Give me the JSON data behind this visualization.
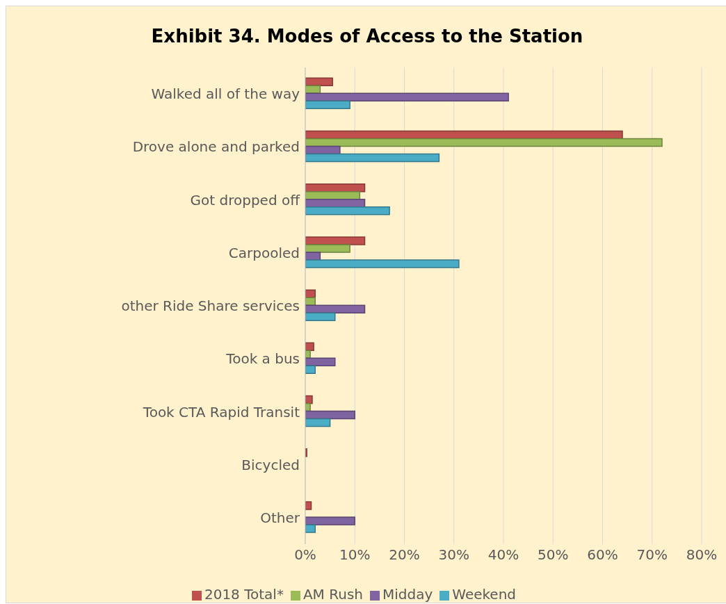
{
  "chart_data": {
    "type": "bar",
    "orientation": "horizontal",
    "title": "Exhibit 34. Modes of Access to the Station",
    "categories": [
      "Walked all of the way",
      "Drove alone and parked",
      "Got dropped off",
      "Carpooled",
      "other Ride Share services",
      "Took a bus",
      "Took CTA Rapid Transit",
      "Bicycled",
      "Other"
    ],
    "series": [
      {
        "name": "2018 Total*",
        "color": "#c0504d",
        "values": [
          5.5,
          64,
          12,
          12,
          2,
          1.7,
          1.4,
          0.3,
          1.2
        ]
      },
      {
        "name": "AM Rush",
        "color": "#9bbb59",
        "values": [
          3,
          72,
          11,
          9,
          2,
          1,
          1,
          0,
          0
        ]
      },
      {
        "name": "Midday",
        "color": "#8064a2",
        "values": [
          41,
          7,
          12,
          3,
          12,
          6,
          10,
          0,
          10
        ]
      },
      {
        "name": "Weekend",
        "color": "#4bacc6",
        "values": [
          9,
          27,
          17,
          31,
          6,
          2,
          5,
          0,
          2
        ]
      }
    ],
    "xlim": [
      0,
      80
    ],
    "xticks": [
      {
        "value": 0,
        "label": "0%"
      },
      {
        "value": 10,
        "label": "10%"
      },
      {
        "value": 20,
        "label": "20%"
      },
      {
        "value": 30,
        "label": "30%"
      },
      {
        "value": 40,
        "label": "40%"
      },
      {
        "value": 50,
        "label": "50%"
      },
      {
        "value": 60,
        "label": "60%"
      },
      {
        "value": 70,
        "label": "70%"
      },
      {
        "value": 80,
        "label": "80%"
      }
    ],
    "grid": "x",
    "legend": "bottom"
  }
}
